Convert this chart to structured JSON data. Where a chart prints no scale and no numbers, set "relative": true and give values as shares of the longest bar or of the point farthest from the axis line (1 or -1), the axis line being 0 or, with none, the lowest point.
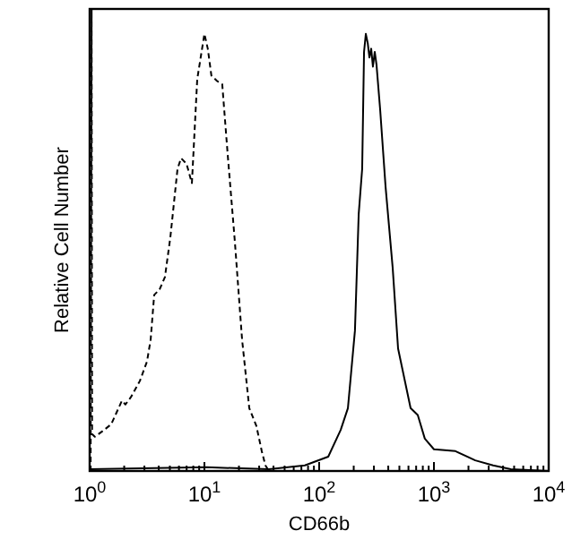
{
  "chart_data": {
    "type": "line",
    "relative": true,
    "log": "x",
    "xlabel": "CD66b",
    "ylabel": "Relative Cell Number",
    "tick_labels": "x",
    "xlim": [
      1,
      10000
    ],
    "xticks": [
      {
        "value": 1,
        "label": "10$^{0}$"
      },
      {
        "value": 2,
        "label": null
      },
      {
        "value": 3,
        "label": null
      },
      {
        "value": 4,
        "label": null
      },
      {
        "value": 5,
        "label": null
      },
      {
        "value": 6,
        "label": null
      },
      {
        "value": 7,
        "label": null
      },
      {
        "value": 8,
        "label": null
      },
      {
        "value": 9,
        "label": null
      },
      {
        "value": 10,
        "label": "10$^{1}$"
      },
      {
        "value": 20,
        "label": null
      },
      {
        "value": 30,
        "label": null
      },
      {
        "value": 40,
        "label": null
      },
      {
        "value": 50,
        "label": null
      },
      {
        "value": 60,
        "label": null
      },
      {
        "value": 70,
        "label": null
      },
      {
        "value": 80,
        "label": null
      },
      {
        "value": 90,
        "label": null
      },
      {
        "value": 100,
        "label": "10$^{2}$"
      },
      {
        "value": 200,
        "label": null
      },
      {
        "value": 300,
        "label": null
      },
      {
        "value": 400,
        "label": null
      },
      {
        "value": 500,
        "label": null
      },
      {
        "value": 600,
        "label": null
      },
      {
        "value": 700,
        "label": null
      },
      {
        "value": 800,
        "label": null
      },
      {
        "value": 900,
        "label": null
      },
      {
        "value": 1000,
        "label": "10$^{3}$"
      },
      {
        "value": 2000,
        "label": null
      },
      {
        "value": 3000,
        "label": null
      },
      {
        "value": 4000,
        "label": null
      },
      {
        "value": 5000,
        "label": null
      },
      {
        "value": 6000,
        "label": null
      },
      {
        "value": 7000,
        "label": null
      },
      {
        "value": 8000,
        "label": null
      },
      {
        "value": 9000,
        "label": null
      },
      {
        "value": 10000,
        "label": "10$^{4}$"
      }
    ],
    "series": [
      {
        "color": "#000000",
        "line_style": "dashed",
        "x": [
          1.02,
          1.04,
          1.05,
          1.11,
          1.29,
          1.54,
          1.91,
          2.05,
          2.29,
          2.74,
          3.16,
          3.4,
          3.65,
          4.07,
          4.53,
          5.05,
          5.83,
          6.26,
          6.98,
          7.78,
          8.66,
          10,
          10.7,
          11.5,
          12.9,
          14.3,
          16,
          18.4,
          21.3,
          24.6,
          28.4,
          31.6,
          34,
          36.5,
          10000
        ],
        "values": [
          0,
          1,
          0.08,
          0.074,
          0.086,
          0.101,
          0.152,
          0.144,
          0.16,
          0.195,
          0.237,
          0.284,
          0.381,
          0.393,
          0.42,
          0.506,
          0.654,
          0.677,
          0.665,
          0.623,
          0.848,
          0.946,
          0.914,
          0.856,
          0.844,
          0.837,
          0.681,
          0.498,
          0.284,
          0.136,
          0.097,
          0.043,
          0.012,
          0,
          0
        ]
      },
      {
        "color": "#000000",
        "line_style": "solid",
        "x": [
          1,
          10.4,
          36.5,
          75,
          120,
          154,
          178,
          205,
          221,
          237,
          246,
          255,
          265,
          274,
          284,
          294,
          305,
          316,
          340,
          379,
          437,
          487,
          626,
          723,
          833,
          1000,
          1540,
          2290,
          3280,
          4680,
          10000
        ],
        "values": [
          0.004,
          0.008,
          0.004,
          0.012,
          0.031,
          0.089,
          0.136,
          0.304,
          0.556,
          0.654,
          0.907,
          0.946,
          0.926,
          0.895,
          0.914,
          0.875,
          0.907,
          0.879,
          0.782,
          0.615,
          0.44,
          0.265,
          0.136,
          0.121,
          0.07,
          0.047,
          0.043,
          0.023,
          0.012,
          0.004,
          0
        ]
      }
    ]
  }
}
